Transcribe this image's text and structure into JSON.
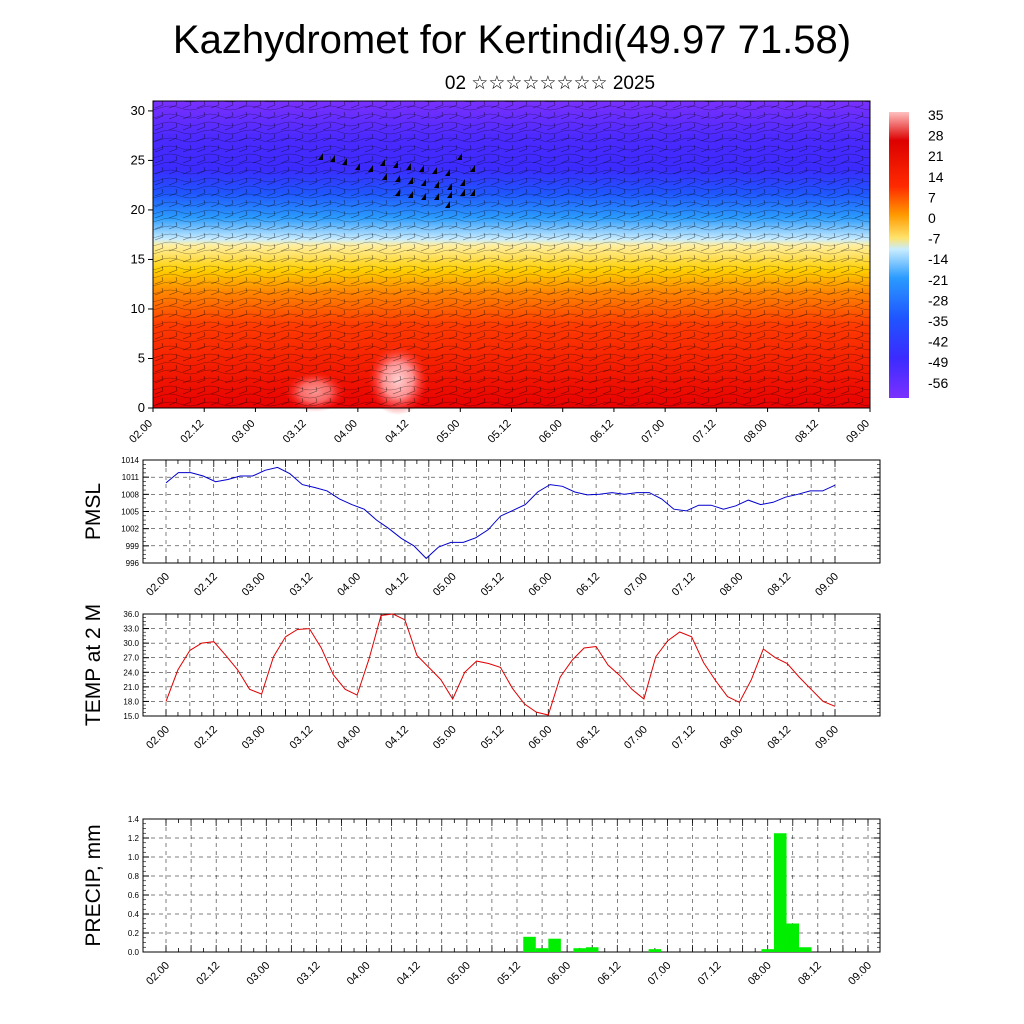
{
  "title": "Kazhydromet for Kertindi(49.97 71.58)",
  "subtitle": "02 ☆☆☆☆☆☆☆☆ 2025",
  "chart_data": [
    {
      "type": "heatmap",
      "x_ticks": [
        "02.00",
        "02.12",
        "03.00",
        "03.12",
        "04.00",
        "04.12",
        "05.00",
        "05.12",
        "06.00",
        "06.12",
        "07.00",
        "07.12",
        "08.00",
        "08.12",
        "09.00"
      ],
      "y_ticks": [
        0,
        5,
        10,
        15,
        20,
        25,
        30
      ],
      "ylim": [
        0,
        31
      ],
      "colorbar_labels": [
        "35",
        "28",
        "21",
        "14",
        "7",
        "0",
        "-7",
        "-14",
        "-21",
        "-28",
        "-35",
        "-42",
        "-49",
        "-56"
      ],
      "colors": {
        "warm": "#e80000",
        "hot": "#ff9a9a",
        "neutral": "#ffe36b",
        "cold_light": "#b8e6ff",
        "cold": "#2a9bff",
        "very_cold": "#3b2bff",
        "extreme": "#7a30ff"
      },
      "overlay": "wind barbs and streamlines"
    },
    {
      "type": "line",
      "ylabel": "PMSL",
      "ylim": [
        996,
        1014
      ],
      "y_ticks": [
        "1014",
        "1011",
        "1008",
        "1005",
        "1002",
        "999",
        "996"
      ],
      "x_ticks": [
        "02.00",
        "02.12",
        "03.00",
        "03.12",
        "04.00",
        "04.12",
        "05.00",
        "05.12",
        "06.00",
        "06.12",
        "07.00",
        "07.12",
        "08.00",
        "08.12",
        "09.00"
      ],
      "color": "#0000cc",
      "values": [
        1010.0,
        1011.8,
        1011.8,
        1011.2,
        1010.2,
        1010.6,
        1011.2,
        1011.2,
        1012.2,
        1012.7,
        1011.6,
        1009.7,
        1009.2,
        1008.6,
        1007.2,
        1006.2,
        1005.4,
        1003.5,
        1002.0,
        1000.3,
        999.0,
        996.8,
        998.8,
        999.6,
        999.6,
        1000.4,
        1001.8,
        1004.2,
        1005.2,
        1006.2,
        1008.4,
        1009.7,
        1009.4,
        1008.4,
        1007.9,
        1008.0,
        1008.3,
        1008.0,
        1008.3,
        1008.3,
        1007.2,
        1005.4,
        1005.1,
        1006.1,
        1006.1,
        1005.4,
        1006.0,
        1007.0,
        1006.2,
        1006.6,
        1007.5,
        1008.0,
        1008.6,
        1008.6,
        1009.6
      ]
    },
    {
      "type": "line",
      "ylabel": "TEMP at 2 M",
      "ylim": [
        15,
        36
      ],
      "y_ticks": [
        "36.0",
        "33.0",
        "30.0",
        "27.0",
        "24.0",
        "21.0",
        "18.0",
        "15.0"
      ],
      "x_ticks": [
        "02.00",
        "02.12",
        "03.00",
        "03.12",
        "04.00",
        "04.12",
        "05.00",
        "05.12",
        "06.00",
        "06.12",
        "07.00",
        "07.12",
        "08.00",
        "08.12",
        "09.00"
      ],
      "color": "#e00000",
      "values": [
        18.0,
        24.5,
        28.5,
        30.0,
        30.3,
        27.5,
        24.5,
        20.5,
        19.5,
        27.2,
        31.3,
        32.8,
        33.0,
        29.0,
        23.5,
        20.5,
        19.3,
        26.8,
        35.7,
        36.0,
        34.8,
        27.5,
        25.0,
        22.5,
        18.5,
        24.0,
        26.3,
        25.8,
        25.0,
        20.7,
        17.5,
        15.8,
        15.2,
        23.0,
        26.5,
        29.0,
        29.3,
        25.5,
        23.3,
        20.5,
        18.5,
        27.2,
        30.5,
        32.3,
        31.3,
        26.0,
        22.3,
        19.0,
        17.8,
        22.5,
        28.8,
        27.0,
        25.8,
        23.0,
        20.5,
        18.0,
        17.0
      ]
    },
    {
      "type": "bar",
      "ylabel": "PRECIP, mm",
      "ylim": [
        0,
        1.4
      ],
      "y_ticks": [
        "1.4",
        "1.2",
        "1.0",
        "0.8",
        "0.6",
        "0.4",
        "0.2",
        "0.0"
      ],
      "x_ticks": [
        "02.00",
        "02.12",
        "03.00",
        "03.12",
        "04.00",
        "04.12",
        "05.00",
        "05.12",
        "06.00",
        "06.12",
        "07.00",
        "07.12",
        "08.00",
        "08.12",
        "09.00"
      ],
      "color": "#00ee00",
      "hours": [
        87,
        90,
        93,
        99,
        102,
        117,
        144,
        147,
        150,
        153
      ],
      "values": [
        0.16,
        0.04,
        0.14,
        0.04,
        0.05,
        0.03,
        0.03,
        1.25,
        0.3,
        0.05
      ]
    }
  ]
}
